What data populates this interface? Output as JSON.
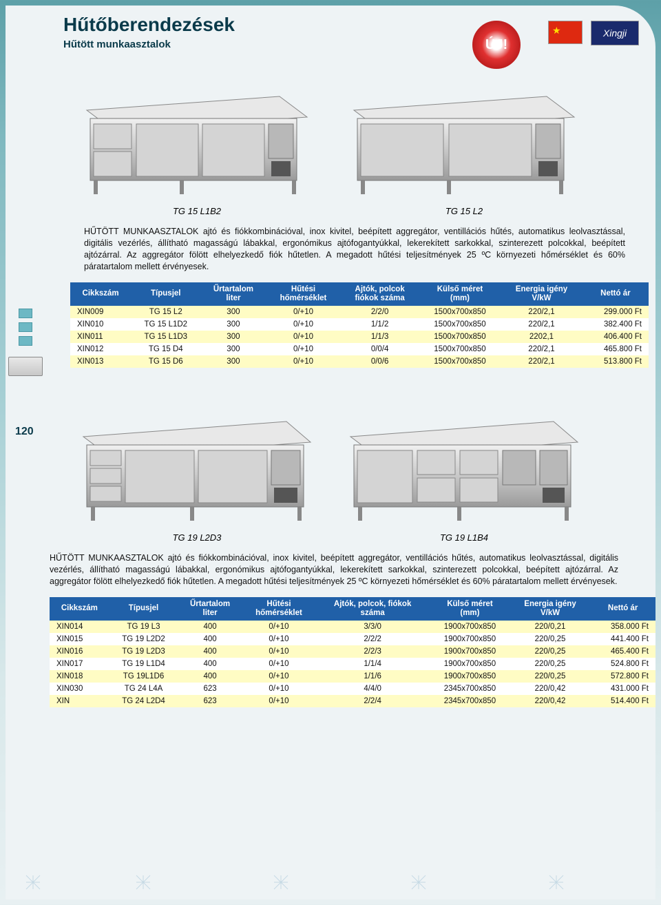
{
  "page_number": "120",
  "header": {
    "title": "Hűtőberendezések",
    "subtitle": "Hűtött munkaasztalok",
    "badge": "ÚJ!",
    "logo_text": "Xingji"
  },
  "colors": {
    "header_bg": "#2060a8",
    "row_alt": "#fffcc4",
    "page_bg": "#eef3f5",
    "title_color": "#0a3a4a"
  },
  "section1": {
    "products": [
      {
        "label": "TG 15 L1B2"
      },
      {
        "label": "TG 15 L2"
      }
    ],
    "description": "HŰTÖTT MUNKAASZTALOK ajtó és fiókkombinációval, inox kivitel, beépített aggregátor, ventillációs hűtés, automatikus leolvasztással, digitális vezérlés, állítható magasságú lábakkal, ergonómikus ajtófogantyúkkal, lekerekített sarkokkal, szinterezett polcokkal, beépített ajtózárral. Az aggregátor fölött elhelyezkedő fiók hűtetlen. A megadott hűtési teljesítmények 25 ºC környezeti hőmérséklet és 60% páratartalom mellett érvényesek.",
    "columns": [
      "Cikkszám",
      "Típusjel",
      "Űrtartalom\nliter",
      "Hűtési\nhőmérséklet",
      "Ajtók, polcok\nfiókok száma",
      "Külső méret\n(mm)",
      "Energia igény\nV/kW",
      "Nettó ár"
    ],
    "rows": [
      [
        "XIN009",
        "TG 15 L2",
        "300",
        "0/+10",
        "2/2/0",
        "1500x700x850",
        "220/2,1",
        "299.000 Ft"
      ],
      [
        "XIN010",
        "TG 15 L1D2",
        "300",
        "0/+10",
        "1/1/2",
        "1500x700x850",
        "220/2,1",
        "382.400 Ft"
      ],
      [
        "XIN011",
        "TG 15 L1D3",
        "300",
        "0/+10",
        "1/1/3",
        "1500x700x850",
        "2202,1",
        "406.400 Ft"
      ],
      [
        "XIN012",
        "TG 15 D4",
        "300",
        "0/+10",
        "0/0/4",
        "1500x700x850",
        "220/2,1",
        "465.800 Ft"
      ],
      [
        "XIN013",
        "TG 15 D6",
        "300",
        "0/+10",
        "0/0/6",
        "1500x700x850",
        "220/2,1",
        "513.800 Ft"
      ]
    ]
  },
  "section2": {
    "products": [
      {
        "label": "TG 19 L2D3"
      },
      {
        "label": "TG 19 L1B4"
      }
    ],
    "description": "HŰTÖTT MUNKAASZTALOK ajtó és fiókkombinációval, inox kivitel, beépített aggregátor, ventillációs hűtés, automatikus leolvasztással, digitális vezérlés, állítható magasságú lábakkal, ergonómikus ajtófogantyúkkal, lekerekített sarkokkal, szinterezett polcokkal, beépített ajtózárral. Az aggregátor fölött elhelyezkedő fiók hűtetlen. A megadott hűtési teljesítmények 25 ºC környezeti hőmérséklet és 60% páratartalom mellett érvényesek.",
    "columns": [
      "Cikkszám",
      "Típusjel",
      "Űrtartalom\nliter",
      "Hűtési\nhőmérséklet",
      "Ajtók, polcok, fiókok\nszáma",
      "Külső méret\n(mm)",
      "Energia igény\nV/kW",
      "Nettó ár"
    ],
    "rows": [
      [
        "XIN014",
        "TG 19 L3",
        "400",
        "0/+10",
        "3/3/0",
        "1900x700x850",
        "220/0,21",
        "358.000 Ft"
      ],
      [
        "XIN015",
        "TG 19 L2D2",
        "400",
        "0/+10",
        "2/2/2",
        "1900x700x850",
        "220/0,25",
        "441.400 Ft"
      ],
      [
        "XIN016",
        "TG 19 L2D3",
        "400",
        "0/+10",
        "2/2/3",
        "1900x700x850",
        "220/0,25",
        "465.400 Ft"
      ],
      [
        "XIN017",
        "TG 19 L1D4",
        "400",
        "0/+10",
        "1/1/4",
        "1900x700x850",
        "220/0,25",
        "524.800 Ft"
      ],
      [
        "XIN018",
        "TG 19L1D6",
        "400",
        "0/+10",
        "1/1/6",
        "1900x700x850",
        "220/0,25",
        "572.800 Ft"
      ],
      [
        "XIN030",
        "TG 24 L4A",
        "623",
        "0/+10",
        "4/4/0",
        "2345x700x850",
        "220/0,42",
        "431.000 Ft"
      ],
      [
        "XIN",
        "TG 24 L2D4",
        "623",
        "0/+10",
        "2/2/4",
        "2345x700x850",
        "220/0,42",
        "514.400 Ft"
      ]
    ]
  }
}
